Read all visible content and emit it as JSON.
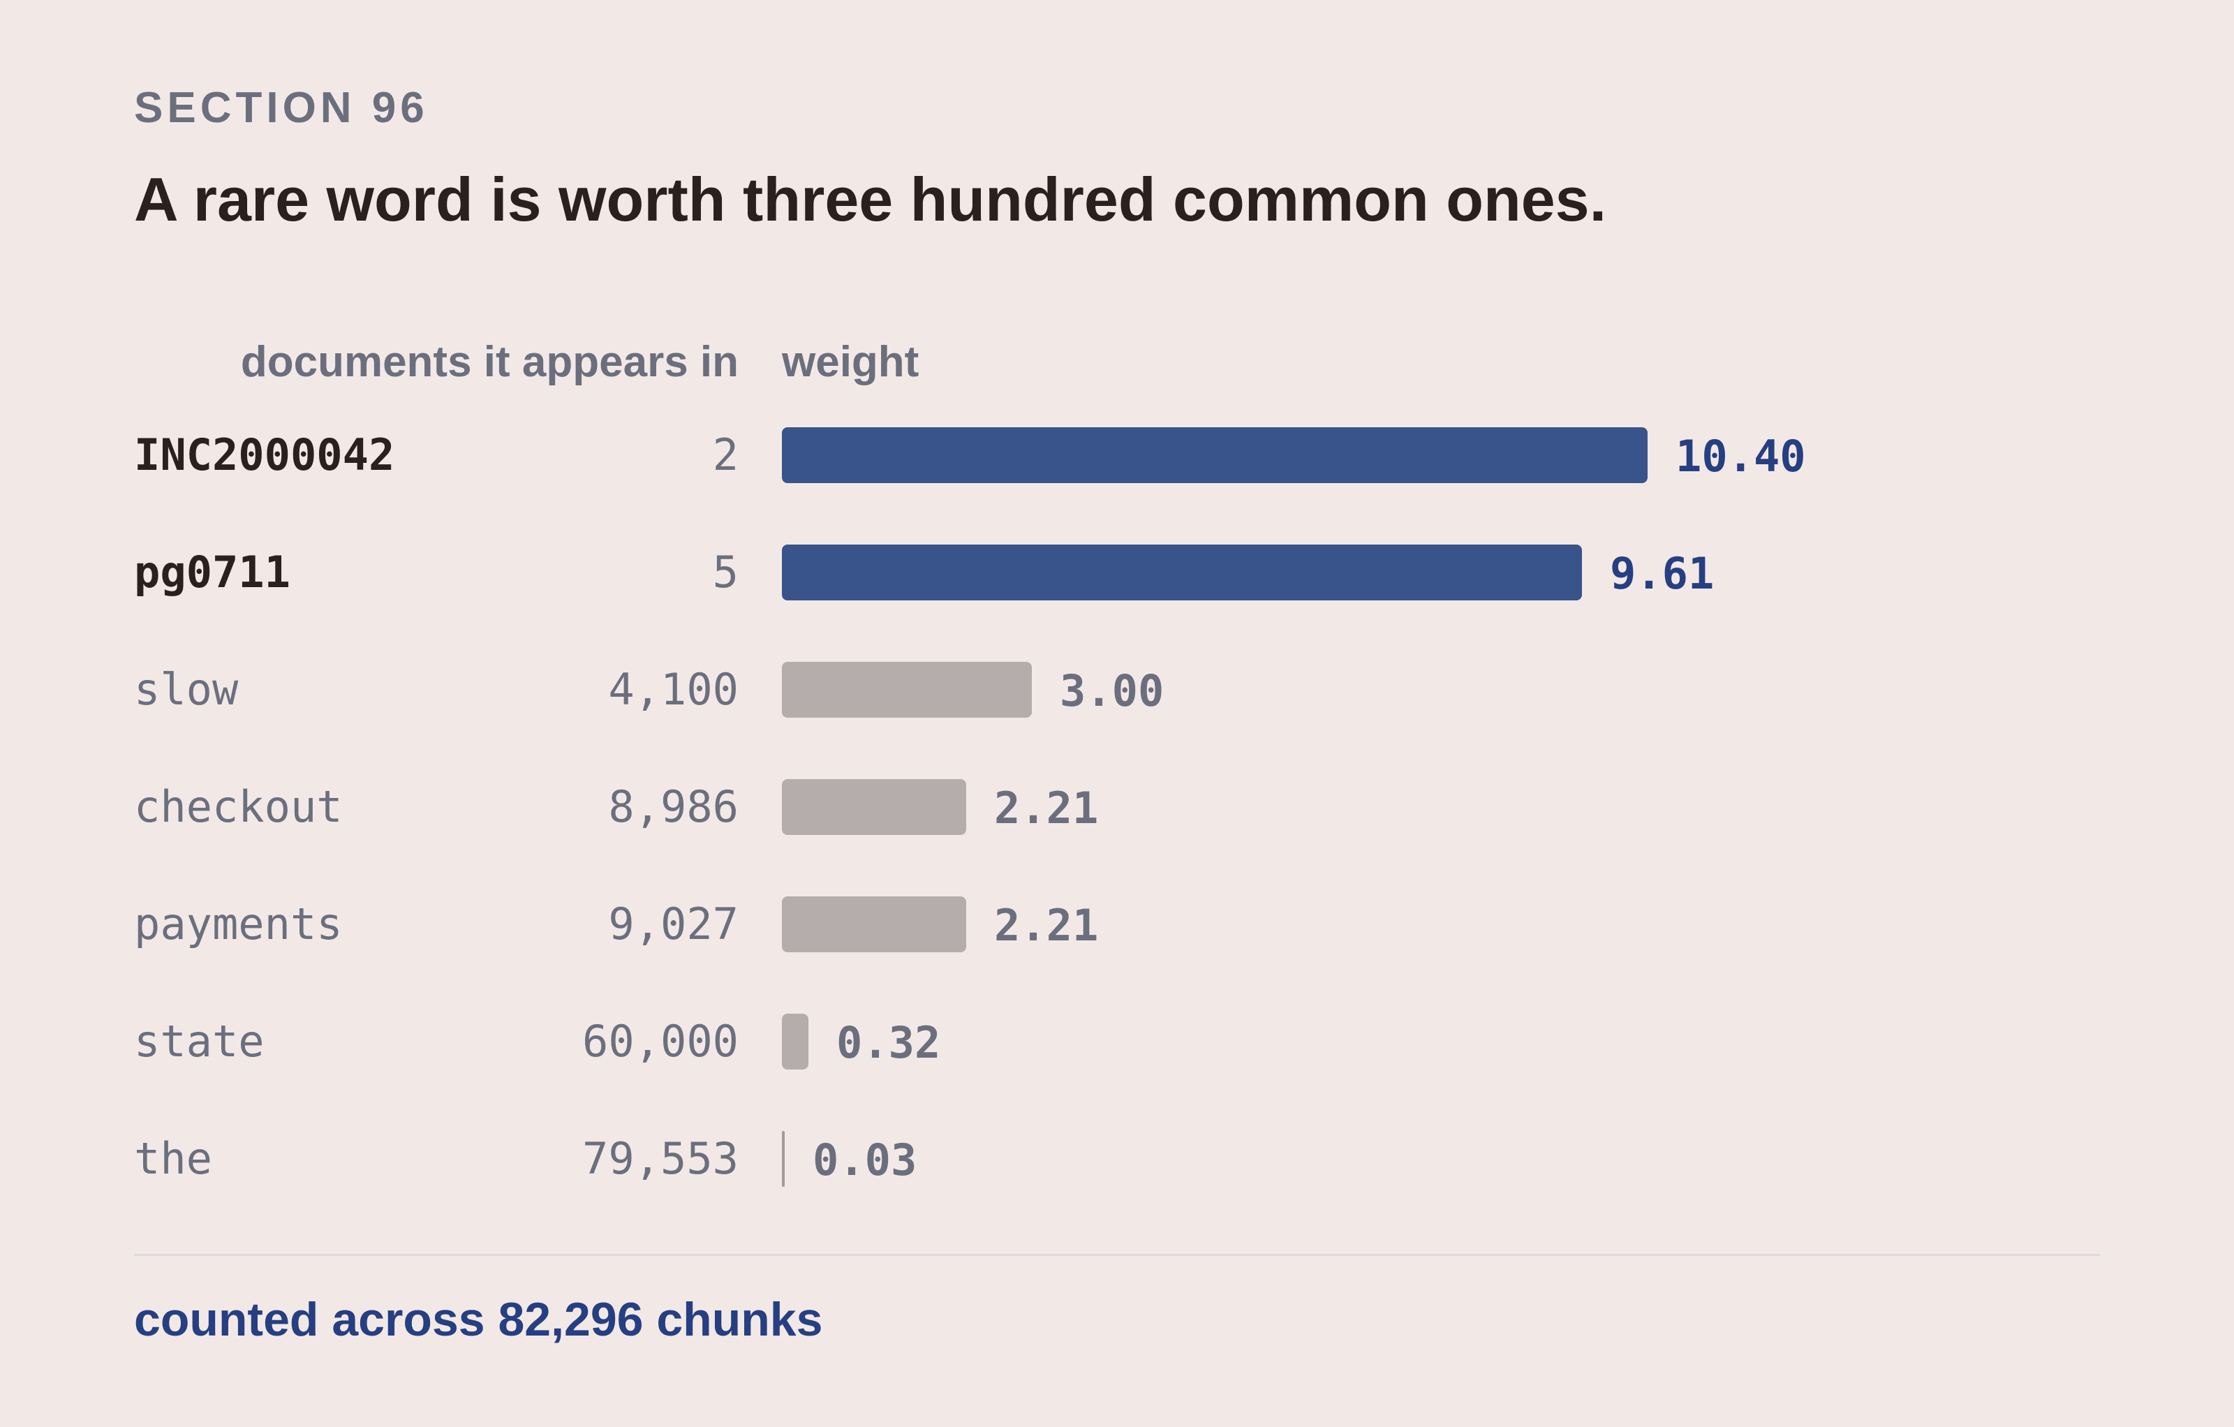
{
  "section": "SECTION 96",
  "title": "A rare word is worth three hundred common ones.",
  "columns": {
    "docs": "documents it appears in",
    "weight": "weight"
  },
  "colors": {
    "rare_bar": "#39548b",
    "common_bar": "#b5adab",
    "rare_value": "#263f82",
    "muted_text": "#6b6f7d",
    "background": "#f2e9e7"
  },
  "chart_data": {
    "type": "bar",
    "orientation": "horizontal",
    "categories": [
      "INC2000042",
      "pg0711",
      "slow",
      "checkout",
      "payments",
      "state",
      "the"
    ],
    "documents": [
      "2",
      "5",
      "4,100",
      "8,986",
      "9,027",
      "60,000",
      "79,553"
    ],
    "values": [
      10.4,
      9.61,
      3.0,
      2.21,
      2.21,
      0.32,
      0.03
    ],
    "value_labels": [
      "10.40",
      "9.61",
      "3.00",
      "2.21",
      "2.21",
      "0.32",
      "0.03"
    ],
    "highlighted": [
      true,
      true,
      false,
      false,
      false,
      false,
      false
    ],
    "xlabel": "weight",
    "ylabel": "documents it appears in",
    "xlim": [
      0,
      10.4
    ],
    "grid": false
  },
  "footer": "counted across 82,296 chunks"
}
